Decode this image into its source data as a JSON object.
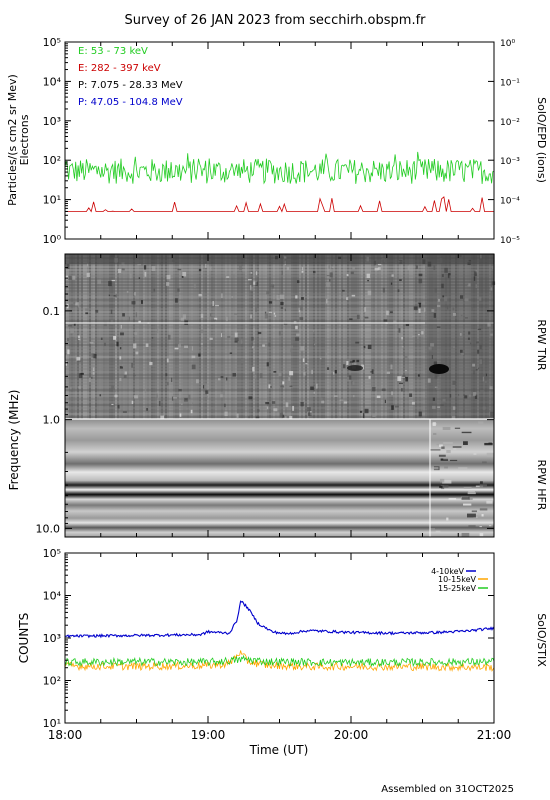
{
  "title": "Survey of 26 JAN 2023 from secchirh.obspm.fr",
  "footer": "Assembled on 31OCT2025",
  "colors": {
    "green": "#22cc22",
    "red": "#cc0000",
    "black": "#000000",
    "blue": "#0000cc",
    "orange": "#ffa500"
  },
  "chart_data": [
    {
      "type": "line",
      "title": "",
      "ylabel": "Particles/(s cm2 sr Mev)",
      "ylabel2": "Electrons",
      "right_label": "SolO/EPD (ions)",
      "yscale": "log",
      "ylim": [
        1,
        100000
      ],
      "y_ticks": [
        "10⁰",
        "10¹",
        "10²",
        "10³",
        "10⁴",
        "10⁵"
      ],
      "y2lim": [
        1e-05,
        1
      ],
      "y2_ticks": [
        "10⁻⁵",
        "10⁻⁴",
        "10⁻³",
        "10⁻²",
        "10⁻¹",
        "10⁰"
      ],
      "xlim": [
        "18:00",
        "21:00"
      ],
      "legend": "top-left",
      "series": [
        {
          "name": "E: 53 - 73 keV",
          "color": "#22cc22",
          "typical_range": [
            25,
            110
          ]
        },
        {
          "name": "E: 282 - 397 keV",
          "color": "#cc0000",
          "typical_range": [
            5,
            12
          ]
        },
        {
          "name": "P: 7.075 - 28.33 MeV",
          "color": "#000000"
        },
        {
          "name": "P: 47.05 - 104.8 MeV",
          "color": "#0000cc"
        }
      ]
    },
    {
      "type": "heatmap",
      "ylabel": "Frequency (MHz)",
      "yscale": "log",
      "ylim": [
        12,
        0.03
      ],
      "y_ticks": [
        "0.1",
        "1.0",
        "10.0"
      ],
      "xlim": [
        "18:00",
        "21:00"
      ],
      "bands": [
        {
          "name": "RPW TNR",
          "freq_range": [
            0.03,
            1.0
          ]
        },
        {
          "name": "RPW HFR",
          "freq_range": [
            1.0,
            12
          ]
        }
      ]
    },
    {
      "type": "line",
      "ylabel": "COUNTS",
      "right_label": "SolO/STIX",
      "yscale": "log",
      "ylim": [
        10,
        100000
      ],
      "y_ticks": [
        "10¹",
        "10²",
        "10³",
        "10⁴",
        "10⁵"
      ],
      "x_ticks": [
        "18:00",
        "19:00",
        "20:00",
        "21:00"
      ],
      "xlabel": "Time (UT)",
      "legend": "top-right",
      "series": [
        {
          "name": "4-10keV",
          "color": "#0000cc",
          "x": [
            18.0,
            18.5,
            18.95,
            19.0,
            19.15,
            19.2,
            19.23,
            19.28,
            19.35,
            19.45,
            19.55,
            19.7,
            20.0,
            20.3,
            20.6,
            20.8,
            21.0
          ],
          "values": [
            1100,
            1150,
            1200,
            1400,
            1300,
            2500,
            7500,
            5000,
            2200,
            1400,
            1250,
            1500,
            1350,
            1300,
            1350,
            1450,
            1700
          ]
        },
        {
          "name": "10-15keV",
          "color": "#ffa500",
          "x": [
            18.0,
            18.5,
            19.0,
            19.15,
            19.22,
            19.28,
            19.4,
            19.7,
            20.0,
            20.5,
            21.0
          ],
          "values": [
            220,
            215,
            225,
            250,
            460,
            280,
            230,
            210,
            215,
            210,
            205
          ]
        },
        {
          "name": "15-25keV",
          "color": "#22cc22",
          "x": [
            18.0,
            18.5,
            19.0,
            19.2,
            19.25,
            19.4,
            19.7,
            20.0,
            20.5,
            21.0
          ],
          "values": [
            270,
            275,
            270,
            300,
            320,
            280,
            270,
            265,
            270,
            275
          ]
        }
      ]
    }
  ]
}
